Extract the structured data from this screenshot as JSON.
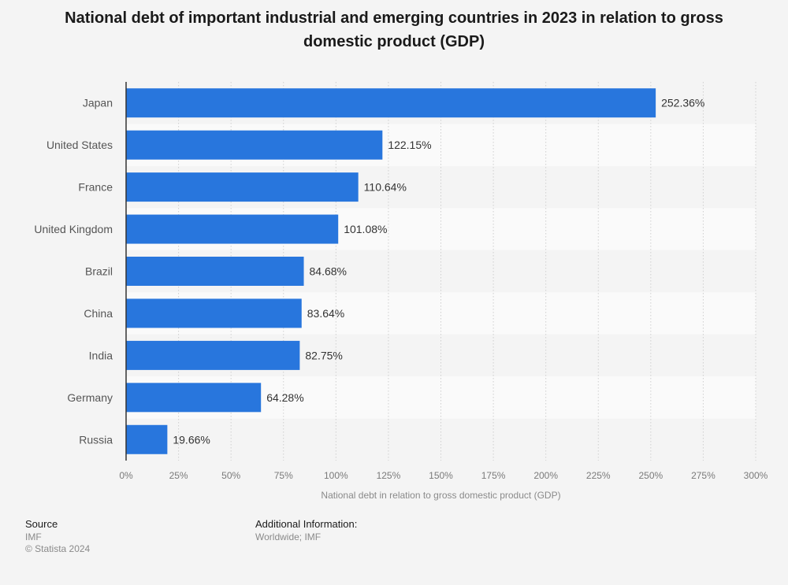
{
  "chart_data": {
    "type": "bar",
    "orientation": "horizontal",
    "title": "National debt of important industrial and emerging countries in 2023 in relation to gross domestic product (GDP)",
    "categories": [
      "Japan",
      "United States",
      "France",
      "United Kingdom",
      "Brazil",
      "China",
      "India",
      "Germany",
      "Russia"
    ],
    "values": [
      252.36,
      122.15,
      110.64,
      101.08,
      84.68,
      83.64,
      82.75,
      64.28,
      19.66
    ],
    "value_labels": [
      "252.36%",
      "122.15%",
      "110.64%",
      "101.08%",
      "84.68%",
      "83.64%",
      "82.75%",
      "64.28%",
      "19.66%"
    ],
    "xlabel": "National debt in relation to gross domestic product (GDP)",
    "ylabel": "",
    "xlim": [
      0,
      300
    ],
    "x_ticks": [
      0,
      25,
      50,
      75,
      100,
      125,
      150,
      175,
      200,
      225,
      250,
      275,
      300
    ],
    "x_tick_labels": [
      "0%",
      "25%",
      "50%",
      "75%",
      "100%",
      "125%",
      "150%",
      "175%",
      "200%",
      "225%",
      "250%",
      "275%",
      "300%"
    ],
    "grid": true,
    "bar_color": "#2876dd",
    "legend": null
  },
  "footer": {
    "source_heading": "Source",
    "source_name": "IMF",
    "copyright": "© Statista 2024",
    "additional_heading": "Additional Information:",
    "additional_text": "Worldwide; IMF"
  }
}
